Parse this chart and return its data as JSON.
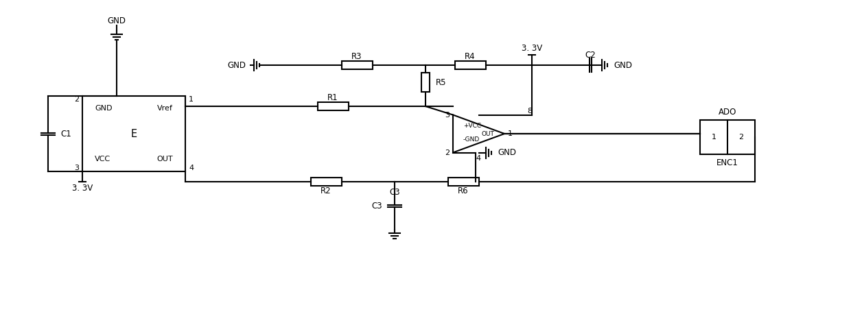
{
  "bg_color": "#ffffff",
  "line_color": "#000000",
  "line_width": 1.5,
  "font_size": 8.5,
  "figsize": [
    12.4,
    4.9
  ],
  "dpi": 100,
  "xlim": [
    0,
    124
  ],
  "ylim": [
    0,
    49
  ]
}
